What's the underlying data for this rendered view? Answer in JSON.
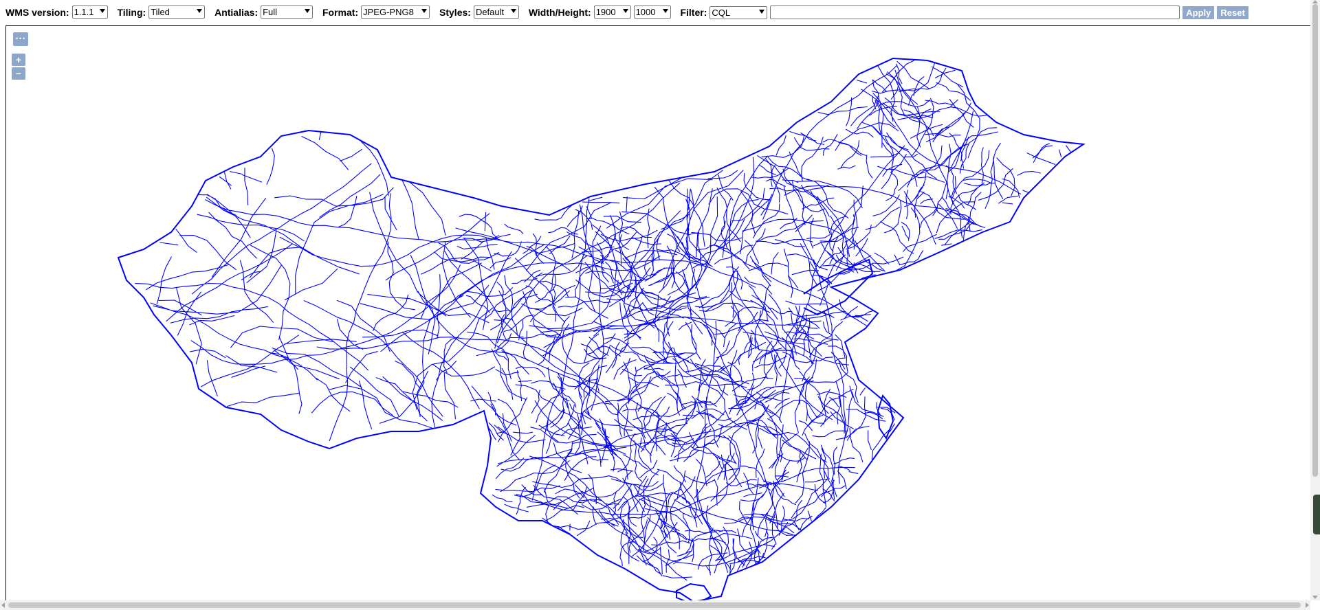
{
  "toolbar": {
    "wms_version": {
      "label": "WMS version:",
      "value": "1.1.1"
    },
    "tiling": {
      "label": "Tiling:",
      "value": "Tiled"
    },
    "antialias": {
      "label": "Antialias:",
      "value": "Full"
    },
    "format": {
      "label": "Format:",
      "value": "JPEG-PNG8"
    },
    "styles": {
      "label": "Styles:",
      "value": "Default"
    },
    "width_height": {
      "label": "Width/Height:",
      "width_value": "1900",
      "height_value": "1000"
    },
    "filter": {
      "label": "Filter:",
      "value": "CQL",
      "text": "",
      "placeholder": ""
    },
    "apply_label": "Apply",
    "reset_label": "Reset"
  },
  "map_controls": {
    "toggle_label": "···",
    "zoom_in_label": "+",
    "zoom_out_label": "−"
  },
  "colors": {
    "road_stroke": "#0000ff",
    "button_bg": "#8fa8cb",
    "map_control_bg": "rgba(0,60,136,0.45)"
  }
}
